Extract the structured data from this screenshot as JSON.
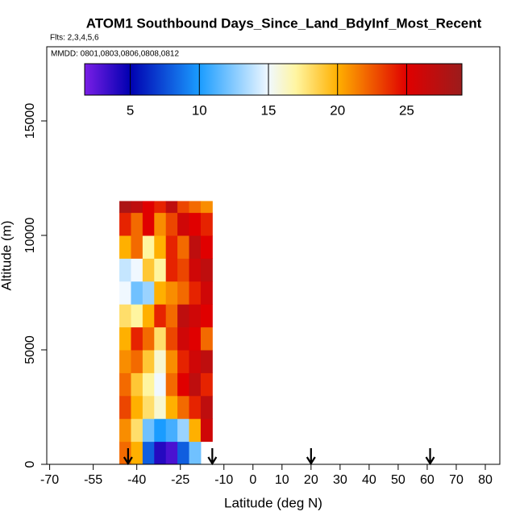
{
  "chart_data": {
    "type": "heatmap",
    "title": "ATOM1 Southbound Days_Since_Land_BdyInf_Most_Recent",
    "subtitle": "Flts: 2,3,4,5,6",
    "annotation": "MMDD: 0801,0803,0806,0808,0812",
    "x_label": "Latitude (deg N)",
    "y_label": "Altitude (m)",
    "xlim": [
      -71,
      85
    ],
    "ylim": [
      0,
      18240
    ],
    "xticks": [
      -70,
      -55,
      -40,
      -25,
      -10,
      0,
      10,
      20,
      30,
      40,
      50,
      60,
      70,
      80
    ],
    "yticks": [
      0,
      5000,
      10000,
      15000
    ],
    "x_edges": [
      -46,
      -42,
      -38,
      -34,
      -30,
      -26,
      -22,
      -18,
      -14
    ],
    "y_edges": [
      0,
      1000,
      2000,
      3000,
      4000,
      5000,
      6000,
      7000,
      8000,
      9000,
      10000,
      11000,
      11500
    ],
    "z": [
      [
        22,
        20,
        8,
        4,
        3,
        8,
        12,
        null
      ],
      [
        21,
        18,
        12,
        10,
        11,
        13,
        20,
        26
      ],
      [
        23,
        20,
        18,
        16,
        20,
        22,
        24,
        27
      ],
      [
        22,
        19,
        17,
        15,
        22,
        25,
        27,
        24
      ],
      [
        21,
        22,
        19,
        16,
        21,
        24,
        26,
        27
      ],
      [
        20,
        24,
        22,
        18,
        23,
        26,
        25,
        22
      ],
      [
        18,
        17,
        20,
        24,
        22,
        27,
        26,
        25
      ],
      [
        15,
        12,
        13,
        20,
        21,
        22,
        24,
        26
      ],
      [
        14,
        15,
        19,
        17,
        24,
        23,
        26,
        27
      ],
      [
        20,
        22,
        17,
        20,
        24,
        22,
        27,
        25
      ],
      [
        24,
        22,
        25,
        21,
        23,
        26,
        25,
        24
      ],
      [
        28,
        27,
        25,
        24,
        27,
        23,
        22,
        21
      ]
    ],
    "colorbar_lim": [
      1.7,
      29
    ],
    "colorbar_ticks": [
      5,
      10,
      15,
      20,
      25
    ],
    "colorscale": [
      [
        1.7,
        "#7a1ee6"
      ],
      [
        5,
        "#0000b0"
      ],
      [
        10,
        "#1a9cff"
      ],
      [
        15,
        "#f0f8ff"
      ],
      [
        17,
        "#fff5a0"
      ],
      [
        20,
        "#ffb000"
      ],
      [
        25,
        "#e00000"
      ],
      [
        29,
        "#9b1c1c"
      ]
    ],
    "arrows_x": [
      -43,
      -14,
      20,
      61
    ]
  }
}
